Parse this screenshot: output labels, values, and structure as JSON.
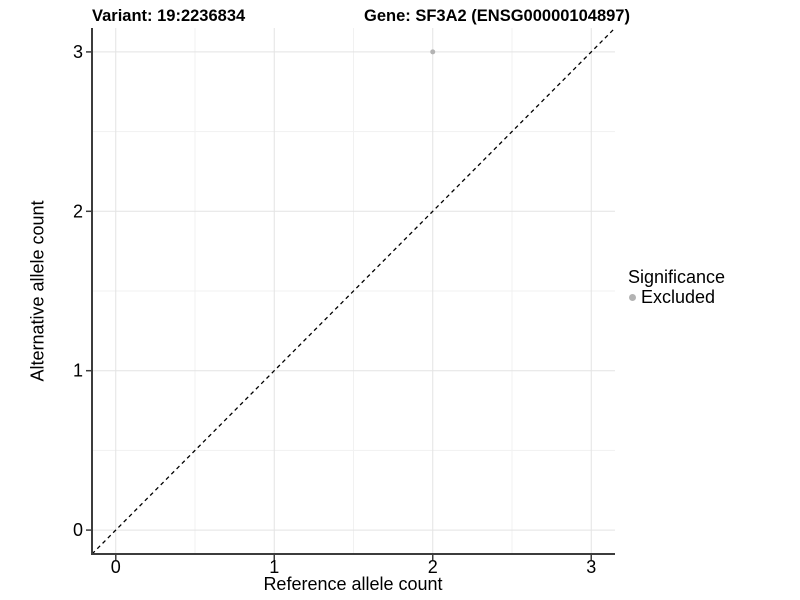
{
  "chart_data": {
    "type": "scatter",
    "titles": [
      {
        "text": "Variant: 19:2236834"
      },
      {
        "text": "Gene: SF3A2 (ENSG00000104897)"
      }
    ],
    "xlabel": "Reference allele count",
    "ylabel": "Alternative allele count",
    "xlim": [
      -0.15,
      3.15
    ],
    "ylim": [
      -0.15,
      3.15
    ],
    "x_ticks": [
      0,
      1,
      2,
      3
    ],
    "y_ticks": [
      0,
      1,
      2,
      3
    ],
    "grid": {
      "major": true,
      "minor": true
    },
    "points": [
      {
        "x": 2,
        "y": 3,
        "series": "Excluded"
      }
    ],
    "reference_line": {
      "type": "identity",
      "style": "dashed",
      "from": [
        -0.15,
        -0.15
      ],
      "to": [
        3.15,
        3.15
      ]
    },
    "legend": {
      "position": "right",
      "title": "Significance",
      "entries": [
        {
          "label": "Excluded",
          "marker": "circle",
          "color": "#b3b3b3"
        }
      ]
    },
    "colors": {
      "point": "#b3b3b3",
      "grid_major": "#e3e3e3",
      "grid_minor": "#f1f1f1",
      "axis_line": "#3c3c3c",
      "dashed_line": "#000000",
      "text": "#000000",
      "background": "#ffffff"
    }
  }
}
